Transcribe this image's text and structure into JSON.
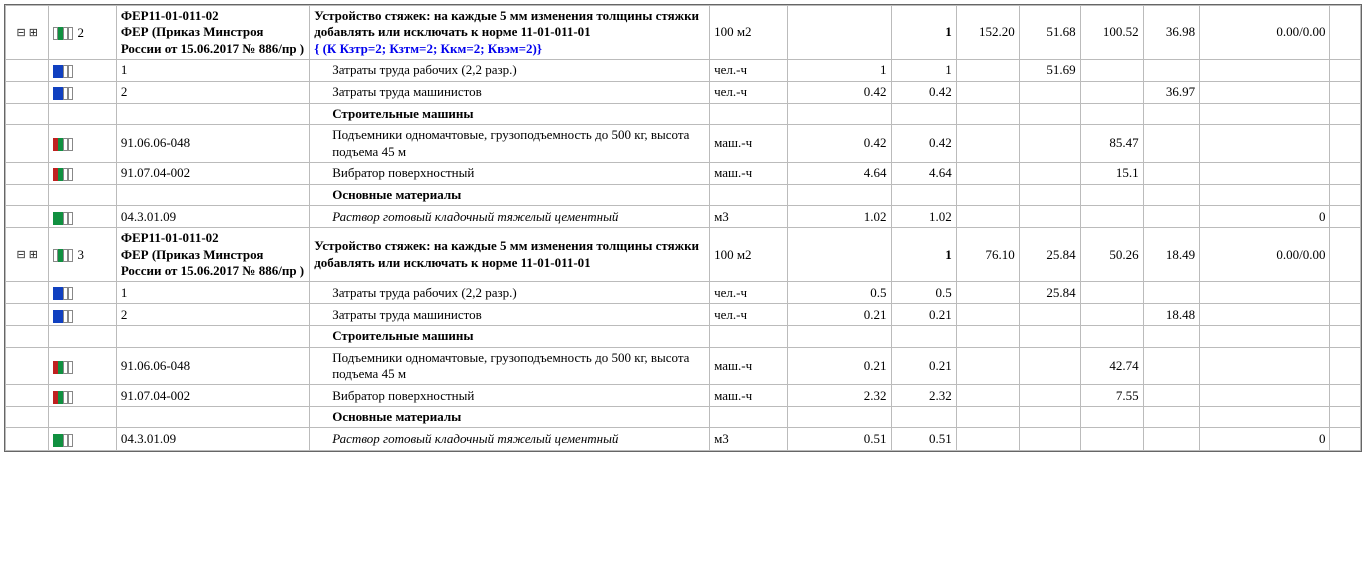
{
  "colors": {
    "red": "#c02020",
    "green": "#109040",
    "blue": "#1040c0",
    "outline": "#888888"
  },
  "collapse_glyph": "⊟ ⊞",
  "rows": [
    {
      "kind": "parent",
      "tree": "⊟ ⊞",
      "blocks": [
        "out",
        "green",
        "out",
        "out"
      ],
      "rownum": "2",
      "code_line1": "ФЕР11-01-011-02",
      "code_line2": "ФЕР (Приказ Минстроя России от 15.06.2017 № 886/пр )",
      "desc_main": "Устройство стяжек: на каждые 5 мм изменения толщины стяжки добавлять или исключать к норме 11-01-011-01",
      "desc_blue": "{ (К Кзтр=2; Кзтм=2; Ккм=2; Квэм=2)}",
      "unit": "100 м2",
      "c7": "1",
      "c8": "152.20",
      "c9": "51.68",
      "c10": "100.52",
      "c11": "36.98",
      "c12": "0.00/0.00",
      "bold": true
    },
    {
      "kind": "child",
      "blocks": [
        "blue",
        "blue",
        "out",
        "out"
      ],
      "code": "1",
      "desc": "Затраты труда рабочих (2,2 разр.)",
      "unit": "чел.-ч",
      "c6": "1",
      "c7": "1",
      "c9": "51.69"
    },
    {
      "kind": "child",
      "blocks": [
        "blue",
        "blue",
        "out",
        "out"
      ],
      "code": "2",
      "desc": "Затраты труда машинистов",
      "unit": "чел.-ч",
      "c6": "0.42",
      "c7": "0.42",
      "c11": "36.97"
    },
    {
      "kind": "group",
      "desc": "Строительные машины"
    },
    {
      "kind": "child",
      "blocks": [
        "red",
        "green",
        "out",
        "out"
      ],
      "code": "91.06.06-048",
      "desc": "Подъемники одномачтовые, грузоподъемность до 500 кг, высота подъема 45 м",
      "unit": "маш.-ч",
      "c6": "0.42",
      "c7": "0.42",
      "c10": "85.47"
    },
    {
      "kind": "child",
      "blocks": [
        "red",
        "green",
        "out",
        "out"
      ],
      "code": "91.07.04-002",
      "desc": "Вибратор поверхностный",
      "unit": "маш.-ч",
      "c6": "4.64",
      "c7": "4.64",
      "c10": "15.1"
    },
    {
      "kind": "group",
      "desc": "Основные материалы"
    },
    {
      "kind": "child",
      "blocks": [
        "green",
        "green",
        "out",
        "out"
      ],
      "code": "04.3.01.09",
      "desc": "Раствор готовый кладочный тяжелый цементный",
      "italic": true,
      "unit": "м3",
      "c6": "1.02",
      "c7": "1.02",
      "c12": "0"
    },
    {
      "kind": "parent",
      "tree": "⊟ ⊞",
      "blocks": [
        "out",
        "green",
        "out",
        "out"
      ],
      "rownum": "3",
      "code_line1": "ФЕР11-01-011-02",
      "code_line2": "ФЕР (Приказ Минстроя России от 15.06.2017 № 886/пр )",
      "desc_main": "Устройство стяжек: на каждые 5 мм изменения толщины стяжки добавлять или исключать к норме 11-01-011-01",
      "unit": "100 м2",
      "c7": "1",
      "c8": "76.10",
      "c9": "25.84",
      "c10": "50.26",
      "c11": "18.49",
      "c12": "0.00/0.00",
      "bold": true
    },
    {
      "kind": "child",
      "blocks": [
        "blue",
        "blue",
        "out",
        "out"
      ],
      "code": "1",
      "desc": "Затраты труда рабочих (2,2 разр.)",
      "unit": "чел.-ч",
      "c6": "0.5",
      "c7": "0.5",
      "c9": "25.84"
    },
    {
      "kind": "child",
      "blocks": [
        "blue",
        "blue",
        "out",
        "out"
      ],
      "code": "2",
      "desc": "Затраты труда машинистов",
      "unit": "чел.-ч",
      "c6": "0.21",
      "c7": "0.21",
      "c11": "18.48"
    },
    {
      "kind": "group",
      "desc": "Строительные машины"
    },
    {
      "kind": "child",
      "blocks": [
        "red",
        "green",
        "out",
        "out"
      ],
      "code": "91.06.06-048",
      "desc": "Подъемники одномачтовые, грузоподъемность до 500 кг, высота подъема 45 м",
      "unit": "маш.-ч",
      "c6": "0.21",
      "c7": "0.21",
      "c10": "42.74"
    },
    {
      "kind": "child",
      "blocks": [
        "red",
        "green",
        "out",
        "out"
      ],
      "code": "91.07.04-002",
      "desc": "Вибратор поверхностный",
      "unit": "маш.-ч",
      "c6": "2.32",
      "c7": "2.32",
      "c10": "7.55"
    },
    {
      "kind": "group",
      "desc": "Основные материалы"
    },
    {
      "kind": "child",
      "blocks": [
        "green",
        "green",
        "out",
        "out"
      ],
      "code": "04.3.01.09",
      "desc": "Раствор готовый кладочный тяжелый цементный",
      "italic": true,
      "unit": "м3",
      "c6": "0.51",
      "c7": "0.51",
      "c12": "0"
    }
  ]
}
